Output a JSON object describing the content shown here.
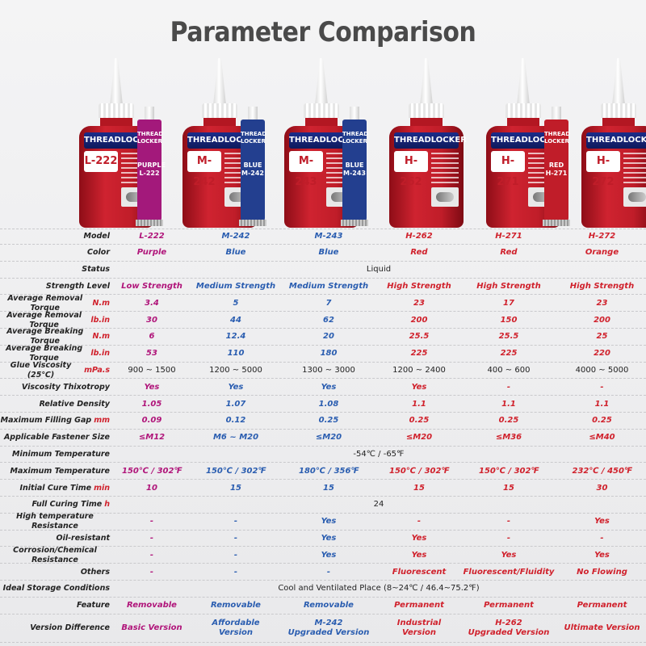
{
  "title": "Parameter Comparison",
  "products": [
    {
      "brand": "THREADLOCKER",
      "model": "L-222",
      "bottle_color": "#c01d29",
      "tube": {
        "head": "THREAD LOCKER",
        "name": "PURPLE L-222",
        "color": "#a3197b"
      }
    },
    {
      "brand": "THREADLOCKER",
      "model": "M-242",
      "bottle_color": "#c01d29",
      "tube": {
        "head": "THREAD LOCKER",
        "name": "BLUE M-242",
        "color": "#233f8f"
      }
    },
    {
      "brand": "THREADLOCKER",
      "model": "M-243",
      "bottle_color": "#c01d29",
      "tube": {
        "head": "THREAD LOCKER",
        "name": "BLUE M-243",
        "color": "#233f8f"
      }
    },
    {
      "brand": "THREADLOCKER",
      "model": "H-262",
      "bottle_color": "#c01d29",
      "tube": null
    },
    {
      "brand": "THREADLOCKER",
      "model": "H-271",
      "bottle_color": "#c01d29",
      "tube": {
        "head": "THREAD LOCKER",
        "name": "RED H-271",
        "color": "#c01d29"
      }
    },
    {
      "brand": "THREADLOCKER",
      "model": "H-272",
      "bottle_color": "#c01d29",
      "tube": null
    }
  ],
  "rows": [
    {
      "name": "model",
      "label": "Model",
      "unit": "",
      "values": [
        "L-222",
        "M-242",
        "M-243",
        "H-262",
        "H-271",
        "H-272"
      ]
    },
    {
      "name": "color",
      "label": "Color",
      "unit": "",
      "values": [
        "Purple",
        "Blue",
        "Blue",
        "Red",
        "Red",
        "Orange"
      ]
    },
    {
      "name": "status",
      "label": "Status",
      "unit": "",
      "span": "Liquid"
    },
    {
      "name": "strength-level",
      "label": "Strength Level",
      "unit": "",
      "values": [
        "Low Strength",
        "Medium Strength",
        "Medium Strength",
        "High Strength",
        "High Strength",
        "High Strength"
      ]
    },
    {
      "name": "removal-torque-nm",
      "label": "Average Removal Torque",
      "unit": "N.m",
      "values": [
        "3.4",
        "5",
        "7",
        "23",
        "17",
        "23"
      ]
    },
    {
      "name": "removal-torque-lbin",
      "label": "Average Removal Torque",
      "unit": "lb.in",
      "values": [
        "30",
        "44",
        "62",
        "200",
        "150",
        "200"
      ]
    },
    {
      "name": "breaking-torque-nm",
      "label": "Average Breaking Torque",
      "unit": "N.m",
      "values": [
        "6",
        "12.4",
        "20",
        "25.5",
        "25.5",
        "25"
      ]
    },
    {
      "name": "breaking-torque-lbin",
      "label": "Average Breaking Torque",
      "unit": "lb.in",
      "values": [
        "53",
        "110",
        "180",
        "225",
        "225",
        "220"
      ]
    },
    {
      "name": "glue-viscosity",
      "label": "Glue Viscosity (25℃)",
      "unit": "mPa.s",
      "values": [
        "900 ~ 1500",
        "1200 ~ 5000",
        "1300 ~ 3000",
        "1200 ~ 2400",
        "400 ~ 600",
        "4000 ~ 5000"
      ],
      "plain": true
    },
    {
      "name": "viscosity-thixotropy",
      "label": "Viscosity Thixotropy",
      "unit": "",
      "values": [
        "Yes",
        "Yes",
        "Yes",
        "Yes",
        "-",
        "-"
      ]
    },
    {
      "name": "relative-density",
      "label": "Relative Density",
      "unit": "",
      "values": [
        "1.05",
        "1.07",
        "1.08",
        "1.1",
        "1.1",
        "1.1"
      ]
    },
    {
      "name": "max-filling-gap",
      "label": "Maximum Filling Gap",
      "unit": "mm",
      "values": [
        "0.09",
        "0.12",
        "0.25",
        "0.25",
        "0.25",
        "0.25"
      ]
    },
    {
      "name": "fastener-size",
      "label": "Applicable Fastener Size",
      "unit": "",
      "values": [
        "≤M12",
        "M6 ~ M20",
        "≤M20",
        "≤M20",
        "≤M36",
        "≤M40"
      ]
    },
    {
      "name": "min-temperature",
      "label": "Minimum Temperature",
      "unit": "",
      "span": "-54℃ / -65℉"
    },
    {
      "name": "max-temperature",
      "label": "Maximum Temperature",
      "unit": "",
      "values": [
        "150℃ / 302℉",
        "150℃ / 302℉",
        "180℃ / 356℉",
        "150℃ / 302℉",
        "150℃ / 302℉",
        "232℃ / 450℉"
      ]
    },
    {
      "name": "initial-cure-time",
      "label": "Initial Cure Time",
      "unit": "min",
      "values": [
        "10",
        "15",
        "15",
        "15",
        "15",
        "30"
      ]
    },
    {
      "name": "full-curing-time",
      "label": "Full Curing Time",
      "unit": "h",
      "span": "24"
    },
    {
      "name": "high-temp-resistance",
      "label": "High temperature Resistance",
      "unit": "",
      "values": [
        "-",
        "-",
        "Yes",
        "-",
        "-",
        "Yes"
      ]
    },
    {
      "name": "oil-resistant",
      "label": "Oil-resistant",
      "unit": "",
      "values": [
        "-",
        "-",
        "Yes",
        "Yes",
        "-",
        "-"
      ]
    },
    {
      "name": "corrosion-resistance",
      "label": "Corrosion/Chemical Resistance",
      "unit": "",
      "values": [
        "-",
        "-",
        "Yes",
        "Yes",
        "Yes",
        "Yes"
      ]
    },
    {
      "name": "others",
      "label": "Others",
      "unit": "",
      "values": [
        "-",
        "-",
        "-",
        "Fluorescent",
        "Fluorescent/Fluidity",
        "No Flowing"
      ]
    },
    {
      "name": "storage-conditions",
      "label": "Ideal Storage Conditions",
      "unit": "",
      "span": "Cool and Ventilated Place (8~24℃ / 46.4~75.2℉)"
    },
    {
      "name": "feature",
      "label": "Feature",
      "unit": "",
      "values": [
        "Removable",
        "Removable",
        "Removable",
        "Permanent",
        "Permanent",
        "Permanent"
      ]
    },
    {
      "name": "version-difference",
      "label": "Version Difference",
      "unit": "",
      "values": [
        "Basic Version",
        "Affordable Version",
        "M-242\nUpgraded Version",
        "Industrial Version",
        "H-262\nUpgraded Version",
        "Ultimate Version"
      ],
      "tall": true
    }
  ]
}
